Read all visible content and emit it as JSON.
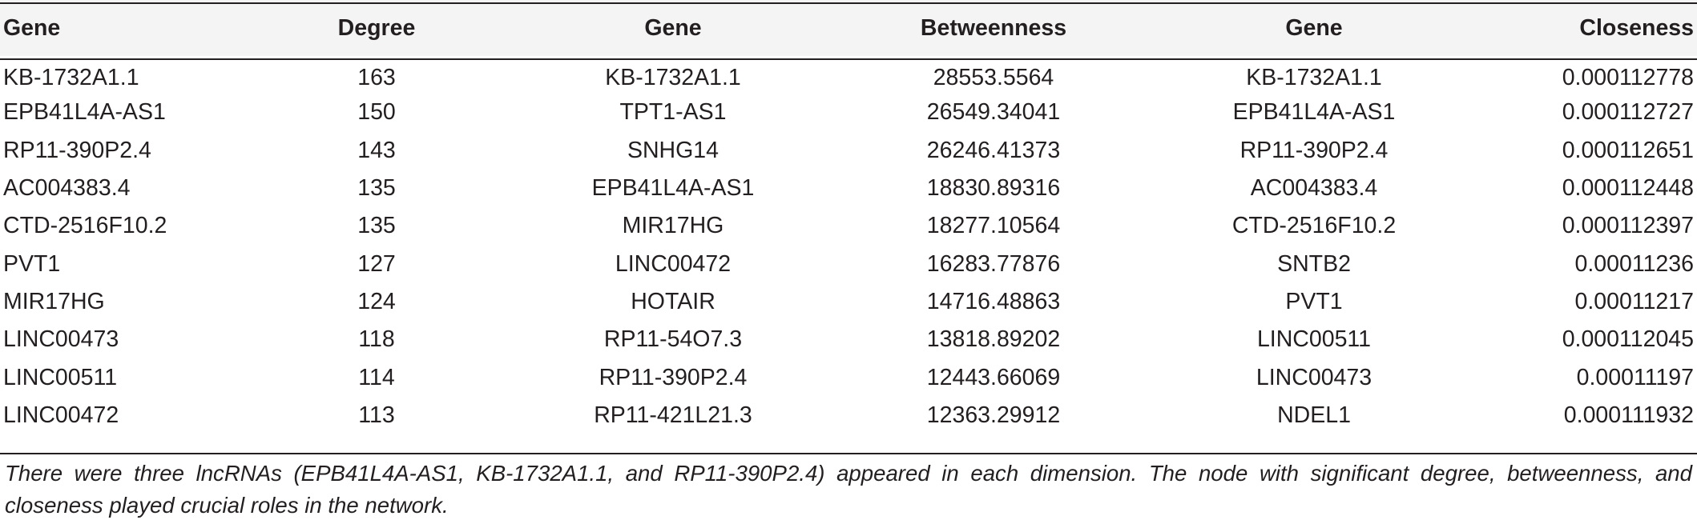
{
  "table": {
    "headers": [
      "Gene",
      "Degree",
      "Gene",
      "Betweenness",
      "Gene",
      "Closeness"
    ],
    "rows": [
      [
        "KB-1732A1.1",
        "163",
        "KB-1732A1.1",
        "28553.5564",
        "KB-1732A1.1",
        "0.000112778"
      ],
      [
        "EPB41L4A-AS1",
        "150",
        "TPT1-AS1",
        "26549.34041",
        "EPB41L4A-AS1",
        "0.000112727"
      ],
      [
        "RP11-390P2.4",
        "143",
        "SNHG14",
        "26246.41373",
        "RP11-390P2.4",
        "0.000112651"
      ],
      [
        "AC004383.4",
        "135",
        "EPB41L4A-AS1",
        "18830.89316",
        "AC004383.4",
        "0.000112448"
      ],
      [
        "CTD-2516F10.2",
        "135",
        "MIR17HG",
        "18277.10564",
        "CTD-2516F10.2",
        "0.000112397"
      ],
      [
        "PVT1",
        "127",
        "LINC00472",
        "16283.77876",
        "SNTB2",
        "0.00011236"
      ],
      [
        "MIR17HG",
        "124",
        "HOTAIR",
        "14716.48863",
        "PVT1",
        "0.00011217"
      ],
      [
        "LINC00473",
        "118",
        "RP11-54O7.3",
        "13818.89202",
        "LINC00511",
        "0.000112045"
      ],
      [
        "LINC00511",
        "114",
        "RP11-390P2.4",
        "12443.66069",
        "LINC00473",
        "0.00011197"
      ],
      [
        "LINC00472",
        "113",
        "RP11-421L21.3",
        "12363.29912",
        "NDEL1",
        "0.000111932"
      ]
    ]
  },
  "footnote": "There were three lncRNAs (EPB41L4A-AS1, KB-1732A1.1, and RP11-390P2.4) appeared in each dimension. The node with significant degree, betweenness, and closeness played crucial roles in the network."
}
